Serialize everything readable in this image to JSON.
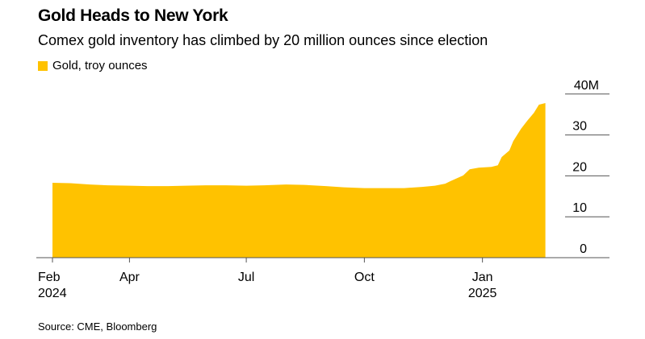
{
  "title": "Gold Heads to New York",
  "subtitle": "Comex gold inventory has climbed by 20 million ounces since election",
  "source": "Source: CME, Bloomberg",
  "chart_data": {
    "type": "area",
    "title": "Gold Heads to New York",
    "subtitle": "Comex gold inventory has climbed by 20 million ounces since election",
    "legend": {
      "placement": "top-left",
      "entries": [
        "Gold, troy ounces"
      ]
    },
    "series": [
      {
        "name": "Gold, troy ounces",
        "color": "#FFC200",
        "x": [
          "2024-02-01",
          "2024-02-15",
          "2024-03-01",
          "2024-03-15",
          "2024-04-01",
          "2024-04-15",
          "2024-05-01",
          "2024-05-15",
          "2024-06-01",
          "2024-06-15",
          "2024-07-01",
          "2024-07-15",
          "2024-08-01",
          "2024-08-15",
          "2024-09-01",
          "2024-09-15",
          "2024-10-01",
          "2024-10-15",
          "2024-11-01",
          "2024-11-15",
          "2024-11-25",
          "2024-12-03",
          "2024-12-07",
          "2024-12-17",
          "2024-12-22",
          "2024-12-29",
          "2025-01-08",
          "2025-01-13",
          "2025-01-16",
          "2025-01-22",
          "2025-01-25",
          "2025-01-31",
          "2025-02-05",
          "2025-02-10",
          "2025-02-14",
          "2025-02-19"
        ],
        "values": [
          18.3,
          18.2,
          17.9,
          17.7,
          17.6,
          17.5,
          17.5,
          17.6,
          17.7,
          17.7,
          17.6,
          17.7,
          17.9,
          17.8,
          17.5,
          17.2,
          17.0,
          17.0,
          17.0,
          17.3,
          17.6,
          18.1,
          18.7,
          20.1,
          21.6,
          22.0,
          22.2,
          22.6,
          24.6,
          26.2,
          28.5,
          31.5,
          33.5,
          35.4,
          37.4,
          37.8
        ]
      }
    ],
    "x_axis": {
      "type": "date",
      "range": [
        "2024-01-15",
        "2025-03-15"
      ],
      "ticks": [
        {
          "date": "2024-02-01",
          "label": "Feb",
          "sublabel": "2024"
        },
        {
          "date": "2024-04-01",
          "label": "Apr",
          "sublabel": ""
        },
        {
          "date": "2024-07-01",
          "label": "Jul",
          "sublabel": ""
        },
        {
          "date": "2024-10-01",
          "label": "Oct",
          "sublabel": ""
        },
        {
          "date": "2025-01-01",
          "label": "Jan",
          "sublabel": "2025"
        }
      ]
    },
    "y_axis": {
      "position": "right",
      "range": [
        0,
        40
      ],
      "ticks": [
        0,
        10,
        20,
        30,
        40
      ],
      "tick_labels": [
        "0",
        "10",
        "20",
        "30",
        "40M"
      ]
    },
    "grid": false
  }
}
